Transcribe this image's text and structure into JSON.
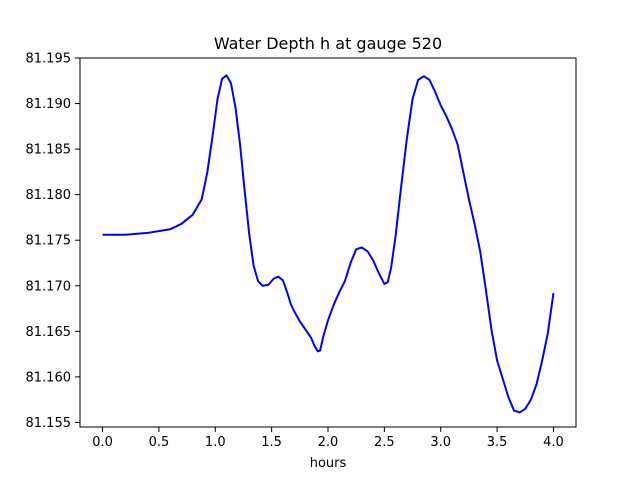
{
  "chart_data": {
    "type": "line",
    "title": "Water Depth h at gauge 520",
    "xlabel": "hours",
    "ylabel": "",
    "xlim": [
      -0.2,
      4.2
    ],
    "ylim": [
      81.1545,
      81.195
    ],
    "xticks": [
      0.0,
      0.5,
      1.0,
      1.5,
      2.0,
      2.5,
      3.0,
      3.5,
      4.0
    ],
    "xtick_labels": [
      "0.0",
      "0.5",
      "1.0",
      "1.5",
      "2.0",
      "2.5",
      "3.0",
      "3.5",
      "4.0"
    ],
    "yticks": [
      81.155,
      81.16,
      81.165,
      81.17,
      81.175,
      81.18,
      81.185,
      81.19,
      81.195
    ],
    "ytick_labels": [
      "81.155",
      "81.160",
      "81.165",
      "81.170",
      "81.175",
      "81.180",
      "81.185",
      "81.190",
      "81.195"
    ],
    "grid": false,
    "series": [
      {
        "color": "#0000ff",
        "x": [
          0.0,
          0.2,
          0.4,
          0.6,
          0.7,
          0.8,
          0.88,
          0.93,
          0.98,
          1.02,
          1.06,
          1.1,
          1.14,
          1.18,
          1.22,
          1.26,
          1.3,
          1.34,
          1.38,
          1.42,
          1.47,
          1.52,
          1.56,
          1.6,
          1.64,
          1.67,
          1.7,
          1.75,
          1.8,
          1.85,
          1.88,
          1.91,
          1.93,
          1.96,
          2.0,
          2.05,
          2.1,
          2.15,
          2.2,
          2.25,
          2.3,
          2.35,
          2.4,
          2.45,
          2.5,
          2.53,
          2.56,
          2.6,
          2.65,
          2.7,
          2.75,
          2.8,
          2.85,
          2.9,
          2.95,
          3.0,
          3.05,
          3.1,
          3.15,
          3.2,
          3.25,
          3.3,
          3.35,
          3.4,
          3.45,
          3.5,
          3.55,
          3.6,
          3.65,
          3.7,
          3.75,
          3.8,
          3.85,
          3.9,
          3.95,
          4.0
        ],
        "y": [
          81.1756,
          81.1756,
          81.1758,
          81.1762,
          81.1768,
          81.1778,
          81.1795,
          81.1825,
          81.1868,
          81.1905,
          81.1927,
          81.1931,
          81.1922,
          81.1895,
          81.1855,
          81.1805,
          81.1758,
          81.1722,
          81.1705,
          81.17,
          81.1701,
          81.1708,
          81.171,
          81.1706,
          81.1692,
          81.168,
          81.1672,
          81.1661,
          81.1652,
          81.1643,
          81.1634,
          81.1628,
          81.1629,
          81.1645,
          81.1662,
          81.1679,
          81.1693,
          81.1705,
          81.1725,
          81.174,
          81.1742,
          81.1738,
          81.1728,
          81.1714,
          81.1702,
          81.1704,
          81.172,
          81.1755,
          81.181,
          81.1862,
          81.1905,
          81.1926,
          81.193,
          81.1926,
          81.1913,
          81.1898,
          81.1886,
          81.1872,
          81.1855,
          81.1825,
          81.1795,
          81.1768,
          81.1738,
          81.1696,
          81.1652,
          81.1618,
          81.1598,
          81.1578,
          81.1563,
          81.1561,
          81.1565,
          81.1575,
          81.1592,
          81.1618,
          81.1648,
          81.1692
        ]
      }
    ]
  }
}
